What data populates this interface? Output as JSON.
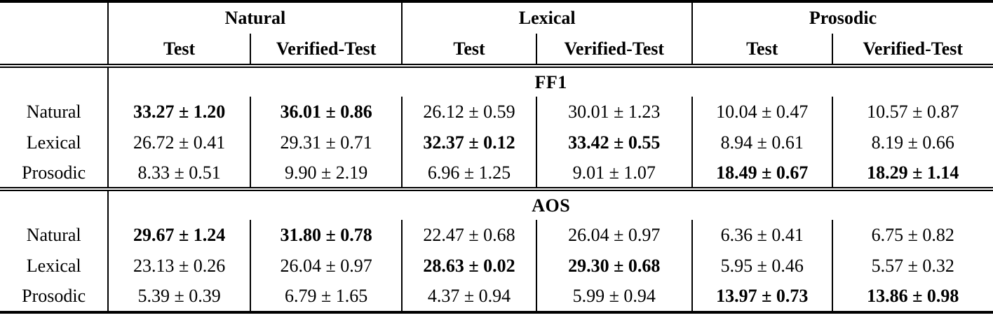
{
  "table": {
    "row_header_column": "",
    "column_groups": [
      {
        "label": "Natural",
        "subcolumns": [
          "Test",
          "Verified-Test"
        ]
      },
      {
        "label": "Lexical",
        "subcolumns": [
          "Test",
          "Verified-Test"
        ]
      },
      {
        "label": "Prosodic",
        "subcolumns": [
          "Test",
          "Verified-Test"
        ]
      }
    ],
    "sections": [
      {
        "title": "FF1",
        "rows": [
          {
            "label": "Natural",
            "cells": [
              {
                "v": "33.27 ± 1.20",
                "b": true
              },
              {
                "v": "36.01 ± 0.86",
                "b": true
              },
              {
                "v": "26.12 ± 0.59",
                "b": false
              },
              {
                "v": "30.01 ± 1.23",
                "b": false
              },
              {
                "v": "10.04 ± 0.47",
                "b": false
              },
              {
                "v": "10.57 ± 0.87",
                "b": false
              }
            ]
          },
          {
            "label": "Lexical",
            "cells": [
              {
                "v": "26.72 ± 0.41",
                "b": false
              },
              {
                "v": "29.31 ± 0.71",
                "b": false
              },
              {
                "v": "32.37 ± 0.12",
                "b": true
              },
              {
                "v": "33.42 ± 0.55",
                "b": true
              },
              {
                "v": "8.94 ± 0.61",
                "b": false
              },
              {
                "v": "8.19 ± 0.66",
                "b": false
              }
            ]
          },
          {
            "label": "Prosodic",
            "cells": [
              {
                "v": "8.33 ± 0.51",
                "b": false
              },
              {
                "v": "9.90 ± 2.19",
                "b": false
              },
              {
                "v": "6.96 ± 1.25",
                "b": false
              },
              {
                "v": "9.01 ± 1.07",
                "b": false
              },
              {
                "v": "18.49 ± 0.67",
                "b": true
              },
              {
                "v": "18.29 ± 1.14",
                "b": true
              }
            ]
          }
        ]
      },
      {
        "title": "AOS",
        "rows": [
          {
            "label": "Natural",
            "cells": [
              {
                "v": "29.67 ± 1.24",
                "b": true
              },
              {
                "v": "31.80 ± 0.78",
                "b": true
              },
              {
                "v": "22.47 ± 0.68",
                "b": false
              },
              {
                "v": "26.04 ± 0.97",
                "b": false
              },
              {
                "v": "6.36 ± 0.41",
                "b": false
              },
              {
                "v": "6.75 ± 0.82",
                "b": false
              }
            ]
          },
          {
            "label": "Lexical",
            "cells": [
              {
                "v": "23.13 ± 0.26",
                "b": false
              },
              {
                "v": "26.04 ± 0.97",
                "b": false
              },
              {
                "v": "28.63 ± 0.02",
                "b": true
              },
              {
                "v": "29.30 ± 0.68",
                "b": true
              },
              {
                "v": "5.95 ± 0.46",
                "b": false
              },
              {
                "v": "5.57 ± 0.32",
                "b": false
              }
            ]
          },
          {
            "label": "Prosodic",
            "cells": [
              {
                "v": "5.39 ± 0.39",
                "b": false
              },
              {
                "v": "6.79 ± 1.65",
                "b": false
              },
              {
                "v": "4.37 ± 0.94",
                "b": false
              },
              {
                "v": "5.99 ± 0.94",
                "b": false
              },
              {
                "v": "13.97 ± 0.73",
                "b": true
              },
              {
                "v": "13.86 ± 0.98",
                "b": true
              }
            ]
          }
        ]
      }
    ]
  },
  "colors": {
    "text": "#000000",
    "background": "#ffffff",
    "rule": "#000000"
  }
}
